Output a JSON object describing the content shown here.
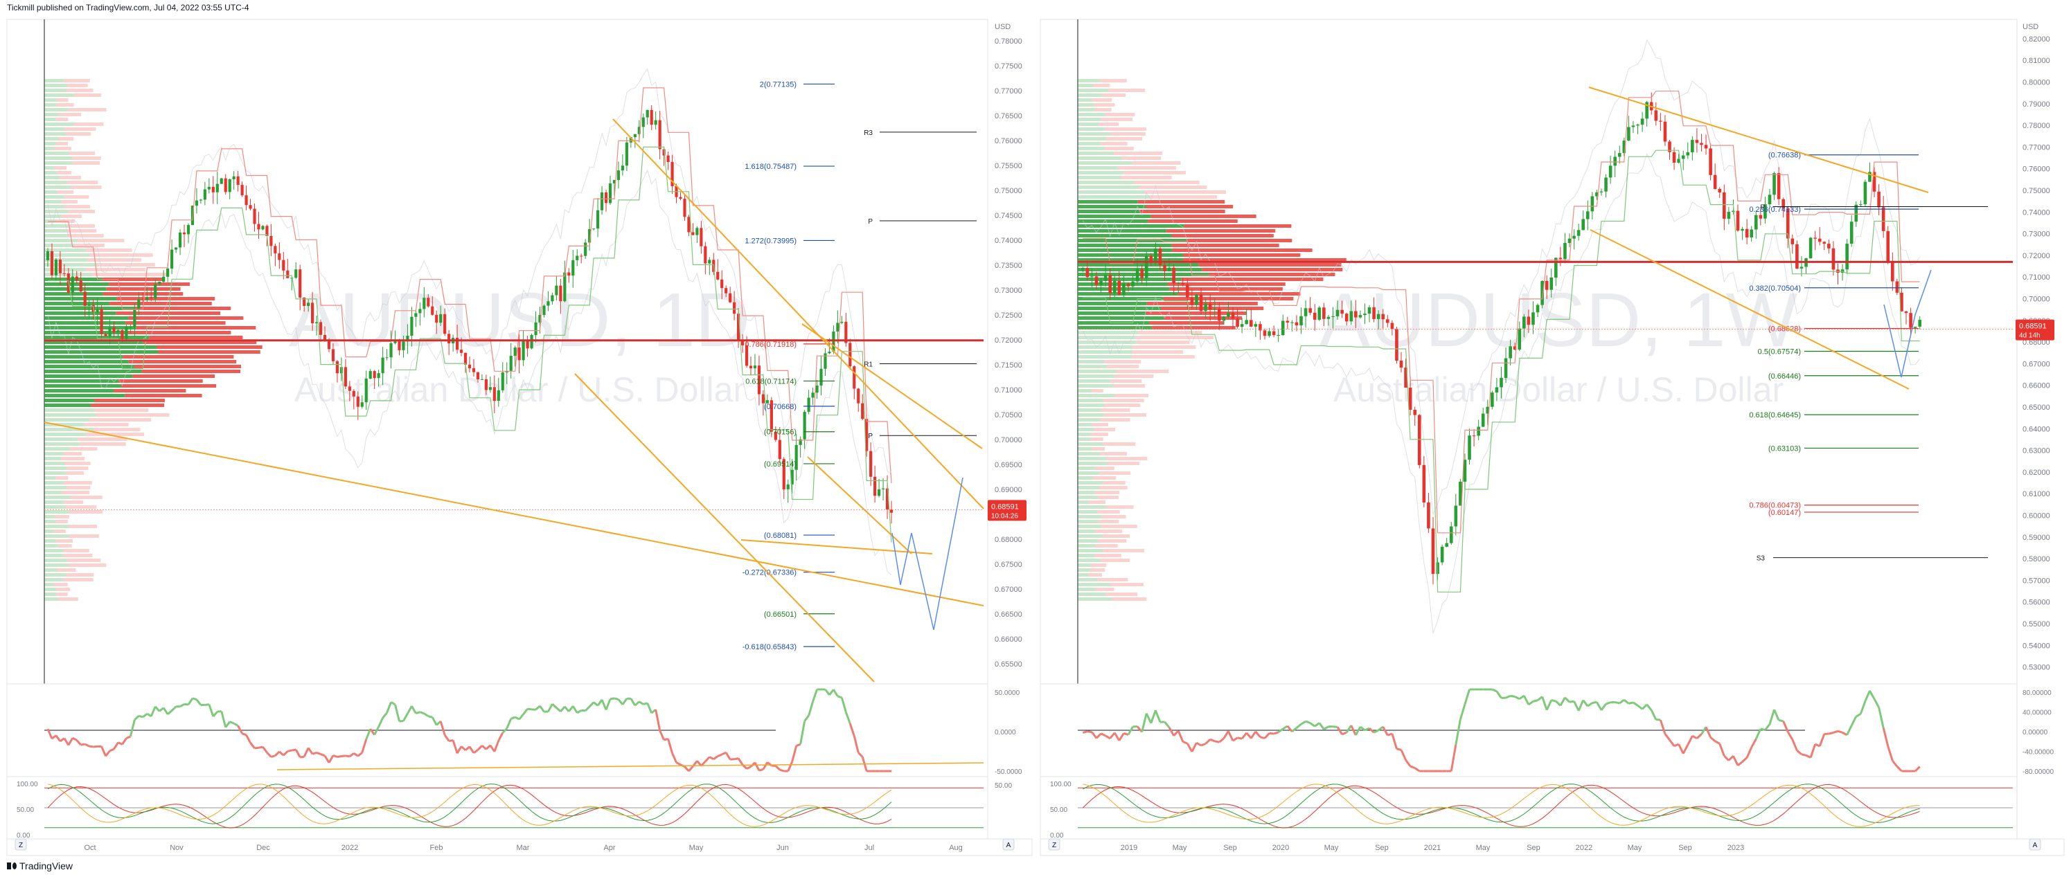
{
  "header": {
    "published": "Tickmill published on TradingView.com, Jul 04, 2022 03:55 UTC-4"
  },
  "footer": {
    "brand": "TradingView"
  },
  "colors": {
    "up": "#26a033",
    "down": "#e8322b",
    "orange": "#f5a623",
    "blue": "#1e4fb4",
    "fib_green": "#1b7a1b",
    "fib_red": "#e8322b",
    "pivot": "#131722",
    "rsi_up": "#7fc97a",
    "rsi_down": "#f07b72"
  },
  "chart_data": [
    {
      "type": "candlestick",
      "watermark_symbol": "AUDUSD, 1D",
      "watermark_name": "Australian Dollar / U.S. Dollar",
      "axis_label": "USD",
      "y_ticks": [
        "0.78000",
        "0.77500",
        "0.77000",
        "0.76500",
        "0.76000",
        "0.75500",
        "0.75000",
        "0.74500",
        "0.74000",
        "0.73500",
        "0.73000",
        "0.72500",
        "0.72000",
        "0.71500",
        "0.71000",
        "0.70500",
        "0.70000",
        "0.69500",
        "0.69000",
        "0.68500",
        "0.68000",
        "0.67500",
        "0.67000",
        "0.66500",
        "0.66000",
        "0.65500"
      ],
      "ylim": [
        0.6515,
        0.7835
      ],
      "x_ticks": [
        "Oct",
        "Nov",
        "Dec",
        "2022",
        "Feb",
        "Mar",
        "Apr",
        "May",
        "Jun",
        "Jul",
        "Aug"
      ],
      "last_price": "0.68591",
      "countdown": "10:04:26",
      "fib_levels": [
        {
          "label": "2(0.77135)",
          "value": 0.77135,
          "color": "blue"
        },
        {
          "label": "1.618(0.75487)",
          "value": 0.75487,
          "color": "blue"
        },
        {
          "label": "1.272(0.73995)",
          "value": 0.73995,
          "color": "blue"
        },
        {
          "label": "0.786(0.71918)",
          "value": 0.71918,
          "color": "red"
        },
        {
          "label": "0.618(0.71174)",
          "value": 0.71174,
          "color": "green"
        },
        {
          "label": "(0.70668)",
          "value": 0.70668,
          "color": "blue"
        },
        {
          "label": "(0.70156)",
          "value": 0.70156,
          "color": "green"
        },
        {
          "label": "(0.69514)",
          "value": 0.69514,
          "color": "green"
        },
        {
          "label": "(0.68081)",
          "value": 0.68081,
          "color": "blue"
        },
        {
          "label": "-0.272(0.67336)",
          "value": 0.67336,
          "color": "blue"
        },
        {
          "label": "(0.66501)",
          "value": 0.66501,
          "color": "green"
        },
        {
          "label": "-0.618(0.65843)",
          "value": 0.65843,
          "color": "blue"
        }
      ],
      "pivots": [
        {
          "label": "R3",
          "value": 0.7617
        },
        {
          "label": "P",
          "value": 0.7439
        },
        {
          "label": "R1",
          "value": 0.7152
        },
        {
          "label": "P",
          "value": 0.7008
        }
      ],
      "poc": 0.7199,
      "rsi_ticks": [
        "50.0000",
        "0.0000",
        "-50.0000"
      ],
      "stoch_ticks": [
        "100.00",
        "50.00",
        "0.00"
      ],
      "stoch_right": [
        "50.00"
      ]
    },
    {
      "type": "candlestick",
      "watermark_symbol": "AUDUSD, 1W",
      "watermark_name": "Australian Dollar / U.S. Dollar",
      "axis_label": "USD",
      "y_ticks": [
        "0.82000",
        "0.81000",
        "0.80000",
        "0.79000",
        "0.78000",
        "0.77000",
        "0.76000",
        "0.75000",
        "0.74000",
        "0.73000",
        "0.72000",
        "0.71000",
        "0.70000",
        "0.69000",
        "0.68000",
        "0.67000",
        "0.66000",
        "0.65000",
        "0.64000",
        "0.63000",
        "0.62000",
        "0.61000",
        "0.60000",
        "0.59000",
        "0.58000",
        "0.57000",
        "0.56000",
        "0.55000",
        "0.54000",
        "0.53000"
      ],
      "ylim": [
        0.5235,
        0.827
      ],
      "x_ticks": [
        "2019",
        "May",
        "Sep",
        "2020",
        "May",
        "Sep",
        "2021",
        "May",
        "Sep",
        "2022",
        "May",
        "Sep",
        "2023"
      ],
      "last_price": "0.68591",
      "countdown": "4d 14h",
      "fib_levels": [
        {
          "label": "(0.76638)",
          "value": 0.76638,
          "color": "blue"
        },
        {
          "label": "0.236(0.74133)",
          "value": 0.74133,
          "color": "blue"
        },
        {
          "label": "0.382(0.70504)",
          "value": 0.70504,
          "color": "blue"
        },
        {
          "label": "(0.68628)",
          "value": 0.68628,
          "color": "red"
        },
        {
          "label": "0.5(0.67574)",
          "value": 0.67574,
          "color": "green"
        },
        {
          "label": "(0.66446)",
          "value": 0.66446,
          "color": "green"
        },
        {
          "label": "0.618(0.64645)",
          "value": 0.64645,
          "color": "green"
        },
        {
          "label": "(0.63103)",
          "value": 0.63103,
          "color": "green"
        },
        {
          "label": "0.786(0.60473)",
          "value": 0.60473,
          "color": "red"
        },
        {
          "label": "(0.60147)",
          "value": 0.60147,
          "color": "red"
        }
      ],
      "pivots": [
        {
          "label": "P",
          "value": 0.7425
        },
        {
          "label": "S3",
          "value": 0.5805
        }
      ],
      "poc": 0.717,
      "rsi_ticks": [
        "80.00000",
        "40.00000",
        "0.00000",
        "-40.00000",
        "-80.00000"
      ],
      "stoch_ticks": [
        "100.00",
        "50.00",
        "0.00"
      ]
    }
  ]
}
